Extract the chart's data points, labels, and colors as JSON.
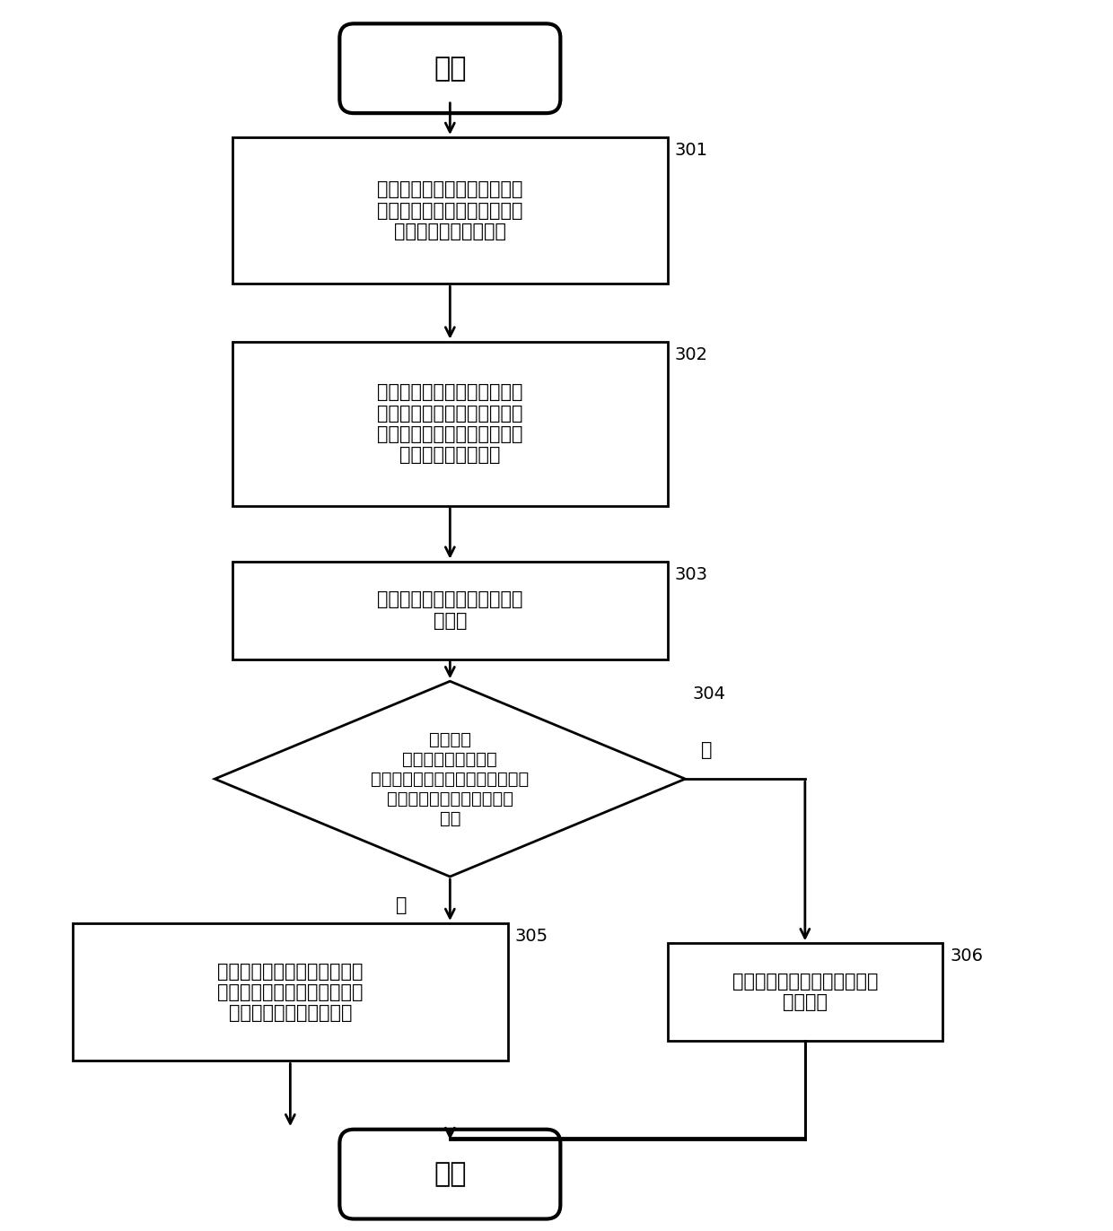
{
  "background_color": "#ffffff",
  "box_edge_color": "#000000",
  "box_fill_color": "#ffffff",
  "arrow_color": "#000000",
  "text_color": "#000000",
  "label_color": "#000000",
  "line_width": 2.0,
  "label_fontsize": 14,
  "text_fontsize": 15,
  "small_text_fontsize": 14,
  "start_text": "开始",
  "end_text": "结束",
  "box301_text": "网卡设备接收待转发数据的连\n接首报文，并将该连接首报文\n发送给相应的软件模块",
  "box301_label": "301",
  "box302_text": "如果网卡设备接收到相应的软\n件模块确定的对应待转发数据\n的源地址的转发规则，则网卡\n设备存储该转发规则",
  "box302_label": "302",
  "box303_text": "网卡设备接收待转发数据的后\n续报文",
  "box303_label": "303",
  "diamond304_text": "网卡设备\n判断对应源地址的第\n一终端和对应目的地址的第二终端\n之间是否已经建立数据传输\n关系",
  "diamond304_label": "304",
  "box305_text": "网卡设备根据转发规则直接将\n来自第一终端的待转发数据的\n后续报文转发给第二终端",
  "box305_label": "305",
  "box306_text": "网卡设备直接将接收到的后续\n报文丢弃",
  "box306_label": "306",
  "yes_label": "是",
  "no_label": "否"
}
